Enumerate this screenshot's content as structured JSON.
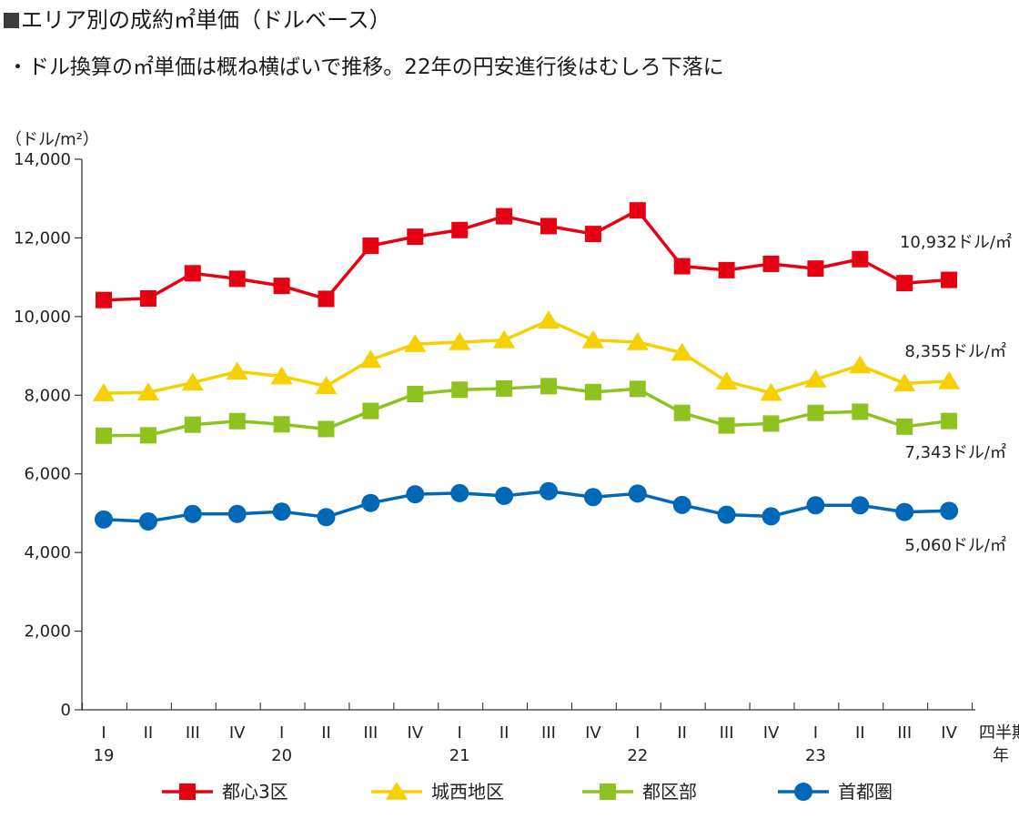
{
  "title": "エリア別の成約㎡単価（ドルベース）",
  "subtitle": "・ドル換算の㎡単価は概ね横ばいで推移。22年の円安進行後はむしろ下落に",
  "chart_data": {
    "type": "line",
    "ylabel": "（ドル/m²）",
    "ylim": [
      0,
      14000
    ],
    "yticks": [
      "0",
      "2,000",
      "4,000",
      "6,000",
      "8,000",
      "10,000",
      "12,000",
      "14,000"
    ],
    "yticks_values": [
      0,
      2000,
      4000,
      6000,
      8000,
      10000,
      12000,
      14000
    ],
    "x_quarters": [
      "I",
      "II",
      "III",
      "IV",
      "I",
      "II",
      "III",
      "IV",
      "I",
      "II",
      "III",
      "IV",
      "I",
      "II",
      "III",
      "IV",
      "I",
      "II",
      "III",
      "IV"
    ],
    "x_years": [
      {
        "label": "19",
        "start_index": 0
      },
      {
        "label": "20",
        "start_index": 4
      },
      {
        "label": "21",
        "start_index": 8
      },
      {
        "label": "22",
        "start_index": 12
      },
      {
        "label": "23",
        "start_index": 16
      }
    ],
    "x_unit_top": "四半期",
    "x_unit_bottom": "年",
    "grid": false,
    "legend_position": "bottom",
    "series": [
      {
        "name": "都心3区",
        "color": "#e60012",
        "marker": "square",
        "values": [
          10420,
          10460,
          11100,
          10960,
          10780,
          10450,
          11800,
          12030,
          12200,
          12550,
          12300,
          12100,
          12700,
          11280,
          11180,
          11340,
          11220,
          11460,
          10850,
          10932
        ],
        "end_label": "10,932ドル/㎡"
      },
      {
        "name": "城西地区",
        "color": "#f7d000",
        "marker": "triangle",
        "values": [
          8050,
          8070,
          8320,
          8600,
          8480,
          8230,
          8900,
          9300,
          9350,
          9400,
          9900,
          9400,
          9350,
          9080,
          8350,
          8060,
          8400,
          8760,
          8300,
          8355
        ],
        "end_label": "8,355ドル/㎡"
      },
      {
        "name": "都区部",
        "color": "#8dc21f",
        "marker": "square",
        "values": [
          6970,
          6980,
          7250,
          7340,
          7260,
          7140,
          7600,
          8030,
          8140,
          8170,
          8230,
          8080,
          8160,
          7550,
          7230,
          7280,
          7550,
          7580,
          7200,
          7343
        ],
        "end_label": "7,343ドル/㎡"
      },
      {
        "name": "首都圏",
        "color": "#0068b7",
        "marker": "circle",
        "values": [
          4840,
          4790,
          4980,
          4980,
          5040,
          4900,
          5260,
          5480,
          5510,
          5440,
          5560,
          5410,
          5500,
          5210,
          4960,
          4920,
          5200,
          5200,
          5030,
          5060
        ],
        "end_label": "5,060ドル/㎡"
      }
    ]
  }
}
